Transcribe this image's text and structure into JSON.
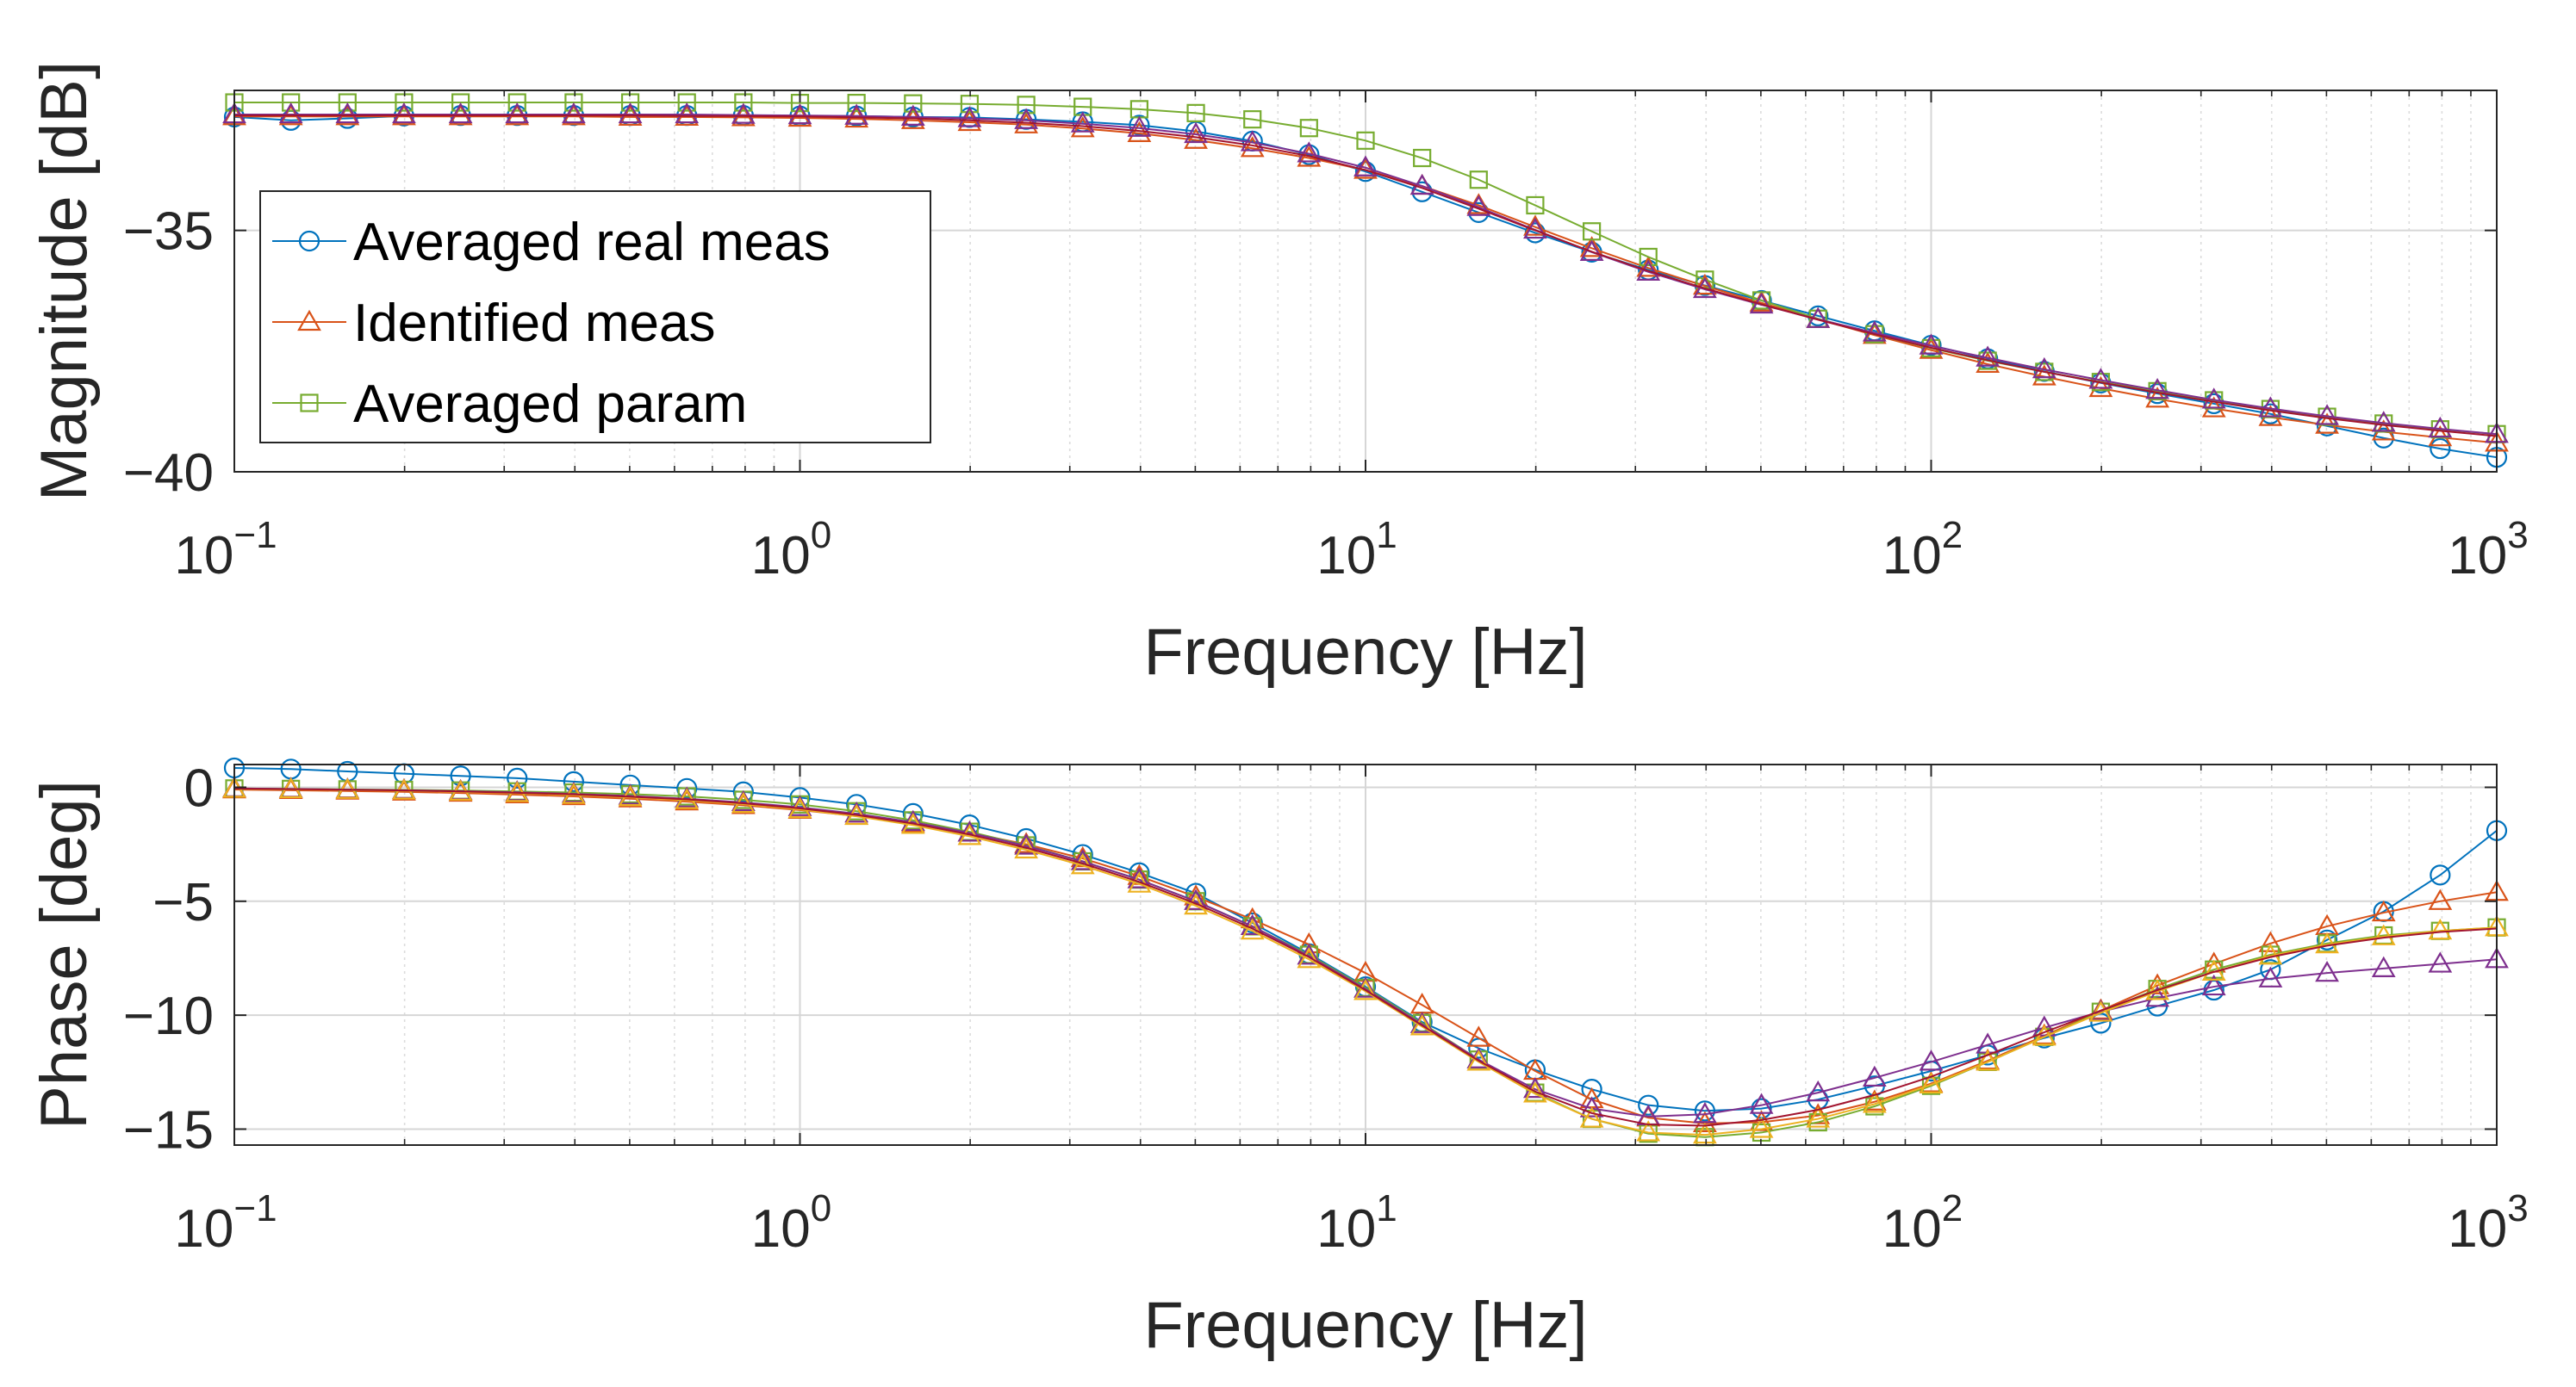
{
  "chart_data": [
    {
      "type": "line",
      "id": "magnitude",
      "xscale": "log",
      "xlim": [
        0.1,
        1000
      ],
      "ylim": [
        -40,
        -32.1
      ],
      "xlabel": "Frequency [Hz]",
      "ylabel": "Magnitude [dB]",
      "yticks": [
        -40,
        -35
      ],
      "ytick_labels": [
        "−40",
        "−35"
      ],
      "xtick_bases": [
        "10",
        "10",
        "10",
        "10",
        "10"
      ],
      "xtick_exps": [
        "−1",
        "0",
        "1",
        "2",
        "3"
      ],
      "grid": true,
      "legend": {
        "placement": "top-left",
        "entries": [
          "Averaged real meas",
          "Identified meas",
          "Averaged param"
        ]
      },
      "x": [
        0.1,
        0.1259,
        0.1585,
        0.1995,
        0.2512,
        0.3162,
        0.3981,
        0.5012,
        0.631,
        0.7943,
        1,
        1.259,
        1.585,
        1.995,
        2.512,
        3.162,
        3.981,
        5.012,
        6.31,
        7.943,
        10,
        12.59,
        15.85,
        19.95,
        25.12,
        31.62,
        39.81,
        50.12,
        63.1,
        79.43,
        100,
        125.9,
        158.5,
        199.5,
        251.2,
        316.2,
        398.1,
        501.2,
        631,
        794.3,
        1000
      ],
      "series": [
        {
          "name": "Averaged real meas",
          "color": "#0072bd",
          "marker": "circle",
          "values": [
            -32.65,
            -32.72,
            -32.68,
            -32.63,
            -32.62,
            -32.62,
            -32.62,
            -32.62,
            -32.62,
            -32.62,
            -32.63,
            -32.63,
            -32.65,
            -32.66,
            -32.7,
            -32.75,
            -32.82,
            -32.95,
            -33.15,
            -33.43,
            -33.78,
            -34.2,
            -34.63,
            -35.05,
            -35.45,
            -35.82,
            -36.14,
            -36.45,
            -36.77,
            -37.08,
            -37.38,
            -37.66,
            -37.92,
            -38.16,
            -38.38,
            -38.59,
            -38.8,
            -39.05,
            -39.3,
            -39.52,
            -39.7
          ]
        },
        {
          "name": "Identified meas",
          "color": "#d95319",
          "marker": "triangle",
          "values": [
            -32.64,
            -32.64,
            -32.64,
            -32.64,
            -32.64,
            -32.64,
            -32.64,
            -32.65,
            -32.65,
            -32.66,
            -32.67,
            -32.69,
            -32.72,
            -32.76,
            -32.81,
            -32.89,
            -32.99,
            -33.13,
            -33.3,
            -33.5,
            -33.75,
            -34.08,
            -34.48,
            -34.93,
            -35.37,
            -35.78,
            -36.15,
            -36.5,
            -36.84,
            -37.17,
            -37.48,
            -37.77,
            -38.03,
            -38.27,
            -38.49,
            -38.69,
            -38.87,
            -39.03,
            -39.17,
            -39.29,
            -39.4
          ]
        },
        {
          "name": "Averaged param",
          "color": "#77ac30",
          "marker": "square",
          "values": [
            -32.35,
            -32.35,
            -32.35,
            -32.35,
            -32.35,
            -32.35,
            -32.35,
            -32.35,
            -32.35,
            -32.35,
            -32.36,
            -32.36,
            -32.37,
            -32.38,
            -32.4,
            -32.44,
            -32.49,
            -32.57,
            -32.7,
            -32.88,
            -33.14,
            -33.5,
            -33.95,
            -34.48,
            -35.02,
            -35.55,
            -36.02,
            -36.45,
            -36.83,
            -37.15,
            -37.44,
            -37.7,
            -37.93,
            -38.14,
            -38.33,
            -38.52,
            -38.7,
            -38.86,
            -39,
            -39.12,
            -39.22
          ]
        },
        {
          "name": "",
          "color": "#7e2f8e",
          "marker": "triangle",
          "values": [
            -32.6,
            -32.6,
            -32.6,
            -32.6,
            -32.6,
            -32.6,
            -32.6,
            -32.6,
            -32.6,
            -32.61,
            -32.62,
            -32.63,
            -32.65,
            -32.68,
            -32.72,
            -32.79,
            -32.88,
            -33.01,
            -33.18,
            -33.41,
            -33.7,
            -34.08,
            -34.52,
            -34.99,
            -35.45,
            -35.86,
            -36.22,
            -36.54,
            -36.84,
            -37.12,
            -37.39,
            -37.64,
            -37.88,
            -38.1,
            -38.31,
            -38.51,
            -38.69,
            -38.85,
            -38.99,
            -39.11,
            -39.22
          ]
        },
        {
          "name": "",
          "color": "#a2142f",
          "marker": "none",
          "values": [
            -32.62,
            -32.62,
            -32.62,
            -32.62,
            -32.62,
            -32.62,
            -32.62,
            -32.62,
            -32.63,
            -32.63,
            -32.64,
            -32.66,
            -32.68,
            -32.72,
            -32.77,
            -32.84,
            -32.94,
            -33.07,
            -33.24,
            -33.46,
            -33.75,
            -34.12,
            -34.55,
            -35.0,
            -35.44,
            -35.84,
            -36.2,
            -36.53,
            -36.85,
            -37.15,
            -37.43,
            -37.69,
            -37.93,
            -38.15,
            -38.36,
            -38.55,
            -38.73,
            -38.89,
            -39.03,
            -39.15,
            -39.26
          ]
        }
      ]
    },
    {
      "type": "line",
      "id": "phase",
      "xscale": "log",
      "xlim": [
        0.1,
        1000
      ],
      "ylim": [
        -15.7,
        1
      ],
      "xlabel": "Frequency [Hz]",
      "ylabel": "Phase [deg]",
      "yticks": [
        -15,
        -10,
        -5,
        0
      ],
      "ytick_labels": [
        "−15",
        "−10",
        "−5",
        "0"
      ],
      "xtick_bases": [
        "10",
        "10",
        "10",
        "10",
        "10"
      ],
      "xtick_exps": [
        "−1",
        "0",
        "1",
        "2",
        "3"
      ],
      "grid": true,
      "x": [
        0.1,
        0.1259,
        0.1585,
        0.1995,
        0.2512,
        0.3162,
        0.3981,
        0.5012,
        0.631,
        0.7943,
        1,
        1.259,
        1.585,
        1.995,
        2.512,
        3.162,
        3.981,
        5.012,
        6.31,
        7.943,
        10,
        12.59,
        15.85,
        19.95,
        25.12,
        31.62,
        39.81,
        50.12,
        63.1,
        79.43,
        100,
        125.9,
        158.5,
        199.5,
        251.2,
        316.2,
        398.1,
        501.2,
        631,
        794.3,
        1000
      ],
      "series": [
        {
          "name": "Averaged real meas",
          "color": "#0072bd",
          "marker": "circle",
          "values": [
            0.85,
            0.8,
            0.7,
            0.6,
            0.5,
            0.4,
            0.25,
            0.1,
            -0.05,
            -0.2,
            -0.45,
            -0.75,
            -1.15,
            -1.65,
            -2.25,
            -2.95,
            -3.75,
            -4.65,
            -5.95,
            -7.3,
            -8.75,
            -10.3,
            -11.45,
            -12.4,
            -13.25,
            -13.95,
            -14.2,
            -14.1,
            -13.7,
            -13.1,
            -12.45,
            -11.75,
            -11.0,
            -10.35,
            -9.6,
            -8.9,
            -8.0,
            -6.7,
            -5.45,
            -3.85,
            -1.9
          ]
        },
        {
          "name": "Identified meas",
          "color": "#d95319",
          "marker": "triangle",
          "values": [
            -0.1,
            -0.13,
            -0.16,
            -0.2,
            -0.25,
            -0.32,
            -0.4,
            -0.5,
            -0.63,
            -0.79,
            -1.0,
            -1.26,
            -1.59,
            -2.0,
            -2.5,
            -3.12,
            -3.9,
            -4.8,
            -5.8,
            -6.9,
            -8.15,
            -9.55,
            -11.0,
            -12.45,
            -13.7,
            -14.5,
            -14.75,
            -14.7,
            -14.4,
            -13.8,
            -13.0,
            -12.0,
            -10.9,
            -9.8,
            -8.7,
            -7.75,
            -6.85,
            -6.1,
            -5.5,
            -5.0,
            -4.6
          ]
        },
        {
          "name": "Averaged param",
          "color": "#77ac30",
          "marker": "square",
          "values": [
            -0.05,
            -0.07,
            -0.09,
            -0.11,
            -0.14,
            -0.18,
            -0.23,
            -0.3,
            -0.4,
            -0.55,
            -0.75,
            -1.05,
            -1.45,
            -1.95,
            -2.55,
            -3.25,
            -4.05,
            -5.0,
            -6.1,
            -7.35,
            -8.8,
            -10.35,
            -11.95,
            -13.4,
            -14.55,
            -15.2,
            -15.35,
            -15.15,
            -14.7,
            -14.0,
            -13.1,
            -12.05,
            -10.95,
            -9.85,
            -8.85,
            -8.0,
            -7.35,
            -6.85,
            -6.5,
            -6.3,
            -6.15
          ]
        },
        {
          "name": "",
          "color": "#7e2f8e",
          "marker": "triangle",
          "values": [
            -0.05,
            -0.07,
            -0.1,
            -0.13,
            -0.17,
            -0.22,
            -0.29,
            -0.38,
            -0.5,
            -0.66,
            -0.88,
            -1.16,
            -1.53,
            -2.0,
            -2.57,
            -3.25,
            -4.05,
            -5.0,
            -6.1,
            -7.4,
            -8.85,
            -10.4,
            -11.95,
            -13.25,
            -14.1,
            -14.45,
            -14.35,
            -13.95,
            -13.4,
            -12.75,
            -12.05,
            -11.3,
            -10.55,
            -9.85,
            -9.25,
            -8.75,
            -8.4,
            -8.15,
            -7.95,
            -7.75,
            -7.55
          ]
        },
        {
          "name": "",
          "color": "#edb120",
          "marker": "triangle",
          "values": [
            -0.07,
            -0.09,
            -0.12,
            -0.15,
            -0.2,
            -0.26,
            -0.34,
            -0.44,
            -0.57,
            -0.74,
            -0.97,
            -1.27,
            -1.66,
            -2.15,
            -2.74,
            -3.43,
            -4.24,
            -5.2,
            -6.3,
            -7.55,
            -8.95,
            -10.5,
            -12.05,
            -13.45,
            -14.55,
            -15.15,
            -15.25,
            -15.0,
            -14.55,
            -13.9,
            -13.05,
            -12.05,
            -10.95,
            -9.9,
            -8.95,
            -8.1,
            -7.4,
            -6.9,
            -6.55,
            -6.3,
            -6.15
          ]
        },
        {
          "name": "",
          "color": "#a2142f",
          "marker": "none",
          "values": [
            -0.06,
            -0.08,
            -0.11,
            -0.14,
            -0.18,
            -0.24,
            -0.31,
            -0.41,
            -0.53,
            -0.7,
            -0.92,
            -1.21,
            -1.59,
            -2.07,
            -2.65,
            -3.34,
            -4.15,
            -5.1,
            -6.2,
            -7.45,
            -8.9,
            -10.45,
            -12.0,
            -13.35,
            -14.3,
            -14.8,
            -14.85,
            -14.6,
            -14.15,
            -13.5,
            -12.7,
            -11.75,
            -10.75,
            -9.8,
            -8.9,
            -8.1,
            -7.45,
            -6.95,
            -6.6,
            -6.35,
            -6.2
          ]
        }
      ]
    }
  ]
}
